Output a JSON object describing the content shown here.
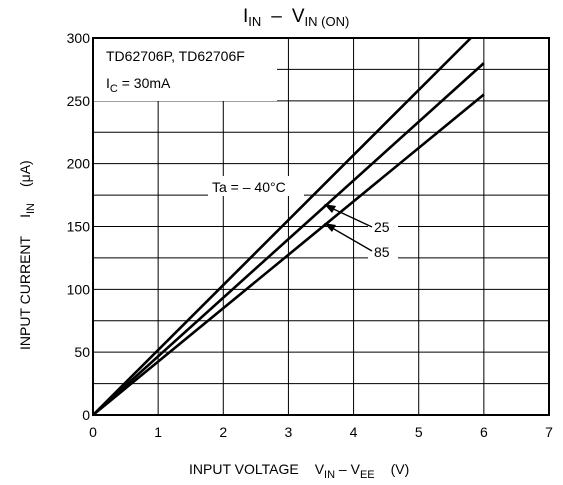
{
  "chart_data": {
    "type": "line",
    "title": {
      "main": "I",
      "main_sub": "IN",
      "sep": "–",
      "v": "V",
      "v_sub": "IN (ON)"
    },
    "xlabel": {
      "prefix": "INPUT VOLTAGE",
      "v1": "V",
      "v1_sub": "IN",
      "dash": " – V",
      "v2_sub": "EE",
      "unit": "(V)"
    },
    "ylabel": {
      "prefix": "INPUT CURRENT",
      "i": "I",
      "i_sub": "IN",
      "unit": "(μA)"
    },
    "xlim": [
      0,
      7
    ],
    "ylim": [
      0,
      300
    ],
    "x_ticks": [
      "0",
      "1",
      "2",
      "3",
      "4",
      "5",
      "6",
      "7"
    ],
    "y_ticks": [
      "0",
      "50",
      "100",
      "150",
      "200",
      "250",
      "300"
    ],
    "grid": true,
    "info_box": {
      "line1": "TD62706P, TD62706F",
      "line2_prefix": "I",
      "line2_sub": "C",
      "line2_rest": " = 30mA"
    },
    "series": [
      {
        "name": "Ta = – 40°C",
        "x": [
          0,
          5.8
        ],
        "y": [
          0,
          300
        ]
      },
      {
        "name": "25",
        "x": [
          0,
          6
        ],
        "y": [
          0,
          280
        ]
      },
      {
        "name": "85",
        "x": [
          0,
          6
        ],
        "y": [
          0,
          255
        ]
      }
    ]
  }
}
